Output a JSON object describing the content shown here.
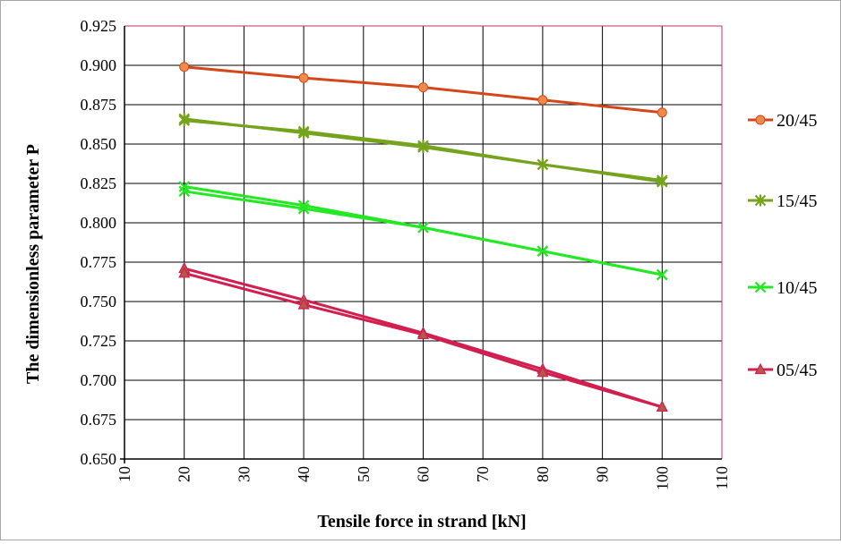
{
  "chart_data": {
    "type": "line",
    "title": "",
    "xlabel": "Tensile force in strand [kN]",
    "ylabel": "The dimensionless parameter P",
    "xlim": [
      10,
      110
    ],
    "ylim": [
      0.65,
      0.925
    ],
    "xticks": [
      "10",
      "20",
      "30",
      "40",
      "50",
      "60",
      "70",
      "80",
      "90",
      "100",
      "110"
    ],
    "yticks": [
      "0.650",
      "0.675",
      "0.700",
      "0.725",
      "0.750",
      "0.775",
      "0.800",
      "0.825",
      "0.850",
      "0.875",
      "0.900",
      "0.925"
    ],
    "grid": true,
    "legend_position": "right",
    "x": [
      20,
      40,
      60,
      80,
      100
    ],
    "series": [
      {
        "name": "20/45",
        "marker": "circle",
        "color": "#d4471a",
        "marker_fill": "#f08a4b",
        "lines": [
          [
            0.899,
            0.892,
            0.886,
            0.878,
            0.87
          ]
        ]
      },
      {
        "name": "15/45",
        "marker": "asterisk",
        "color": "#76a31d",
        "marker_fill": "#76a31d",
        "lines": [
          [
            0.866,
            0.857,
            0.848,
            0.837,
            0.826
          ],
          [
            0.865,
            0.858,
            0.849,
            0.837,
            0.827
          ]
        ]
      },
      {
        "name": "10/45",
        "marker": "x",
        "color": "#24e824",
        "marker_fill": "#24e824",
        "lines": [
          [
            0.823,
            0.811,
            0.797,
            0.782,
            0.767
          ],
          [
            0.82,
            0.809,
            0.797,
            0.782,
            0.767
          ]
        ]
      },
      {
        "name": "05/45",
        "marker": "triangle",
        "color": "#d11f4f",
        "marker_fill": "#b55a4a",
        "lines": [
          [
            0.771,
            0.751,
            0.73,
            0.707,
            0.683
          ],
          [
            0.768,
            0.748,
            0.729,
            0.705,
            0.683
          ]
        ]
      }
    ]
  }
}
